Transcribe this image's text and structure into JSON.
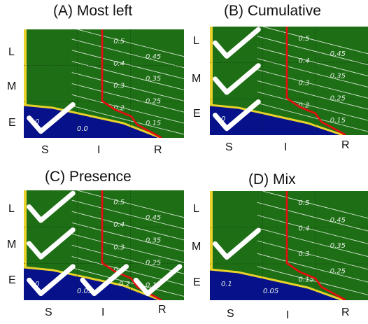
{
  "colors": {
    "field_green": "#1d6e14",
    "region_blue": "#07128a",
    "boundary_red": "#e01010",
    "boundary_yellow": "#e8d22a",
    "check_white": "#ffffff",
    "contour_white": "#e6efe6"
  },
  "axis": {
    "x": [
      "S",
      "I",
      "R"
    ],
    "y": [
      "L",
      "M",
      "E"
    ]
  },
  "panels": [
    {
      "id": "A",
      "title": "(A) Most left",
      "contours": [
        "0.5",
        "0.45",
        "0.4",
        "0.35",
        "0.3",
        "0.25",
        "0.2",
        "0.15"
      ],
      "blue_labels": [
        "0",
        "0.0"
      ],
      "checks": [
        {
          "row": "E",
          "col": "S"
        }
      ],
      "icon": "checkmark-icon"
    },
    {
      "id": "B",
      "title": "(B) Cumulative",
      "contours": [
        "0.5",
        "0.45",
        "0.4",
        "0.35",
        "0.3",
        "0.25",
        "0.2",
        "0.15"
      ],
      "blue_labels": [
        "0"
      ],
      "checks": [
        {
          "row": "L",
          "col": "S"
        },
        {
          "row": "M",
          "col": "S"
        },
        {
          "row": "E",
          "col": "S"
        }
      ],
      "icon": "checkmark-icon"
    },
    {
      "id": "C",
      "title": "(C) Presence",
      "contours": [
        "0.5",
        "0.45",
        "0.4",
        "0.35",
        "0.3",
        "0.25",
        "0.2",
        "0.15"
      ],
      "blue_labels": [
        "0",
        "0.05",
        "0.2"
      ],
      "checks": [
        {
          "row": "L",
          "col": "S"
        },
        {
          "row": "M",
          "col": "S"
        },
        {
          "row": "E",
          "col": "S"
        },
        {
          "row": "E",
          "col": "I"
        },
        {
          "row": "E",
          "col": "R"
        }
      ],
      "icon": "checkmark-icon"
    },
    {
      "id": "D",
      "title": "(D) Mix",
      "contours": [
        "0.5",
        "0.45",
        "0.4",
        "0.35",
        "0.3",
        "0.25",
        "0.15"
      ],
      "blue_labels": [
        "0.1",
        "0.05"
      ],
      "checks": [
        {
          "row": "M",
          "col": "S"
        }
      ],
      "icon": "checkmark-icon"
    }
  ]
}
